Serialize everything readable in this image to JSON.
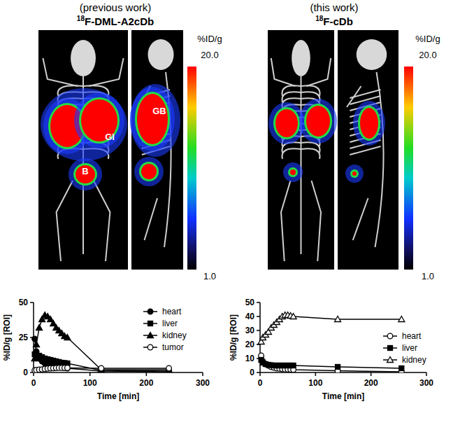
{
  "chart_data": [
    {
      "type": "line",
      "x_label": "Time [min]",
      "y_label": "%ID/g [ROI]",
      "x": [
        2,
        5,
        10,
        15,
        20,
        25,
        30,
        35,
        40,
        45,
        50,
        55,
        60,
        120,
        240
      ],
      "xlim": [
        0,
        300
      ],
      "xticks": [
        0,
        100,
        200,
        300
      ],
      "ylim": [
        0,
        50
      ],
      "yticks": [
        0,
        25,
        50
      ],
      "legend": "upper right",
      "series": [
        {
          "name": "heart",
          "color": "#000000",
          "marker": "circle",
          "values": [
            24,
            15,
            10,
            8,
            6.5,
            5.5,
            5,
            4.5,
            4,
            3.8,
            3.5,
            3.2,
            3,
            1,
            0.5
          ]
        },
        {
          "name": "liver",
          "color": "#000000",
          "marker": "square",
          "values": [
            13,
            13,
            12,
            11,
            10,
            9.5,
            9,
            8.5,
            8,
            7.5,
            7,
            6.8,
            6.5,
            1.5,
            1
          ]
        },
        {
          "name": "kidney",
          "color": "#000000",
          "marker": "triangle",
          "values": [
            10,
            20,
            32,
            38,
            41,
            40,
            38,
            35,
            32,
            30,
            28,
            26,
            25,
            2,
            2
          ]
        },
        {
          "name": "tumor",
          "color": "#000000",
          "marker": "circle-open",
          "values": [
            1.5,
            1.8,
            2,
            2.2,
            2.5,
            2.8,
            3,
            3.1,
            3.2,
            3.3,
            3.3,
            3.3,
            3.3,
            3,
            3
          ]
        }
      ]
    },
    {
      "type": "line",
      "x_label": "Time [min]",
      "y_label": "%ID/g [ROI]",
      "x": [
        2,
        5,
        10,
        15,
        20,
        25,
        30,
        35,
        40,
        45,
        50,
        55,
        60,
        140,
        255
      ],
      "xlim": [
        0,
        300
      ],
      "xticks": [
        0,
        100,
        200,
        300
      ],
      "ylim": [
        0,
        50
      ],
      "yticks": [
        0,
        10,
        20,
        30,
        40,
        50
      ],
      "legend": "center right",
      "series": [
        {
          "name": "heart",
          "color": "#000000",
          "marker": "circle-open",
          "values": [
            12,
            8,
            6,
            5,
            4,
            3.5,
            3,
            2.8,
            2.5,
            2.3,
            2.2,
            2.1,
            2,
            1.2,
            0.5
          ]
        },
        {
          "name": "liver",
          "color": "#000000",
          "marker": "square",
          "values": [
            9,
            7,
            6,
            5.5,
            5.2,
            5,
            5,
            5,
            5,
            5,
            5,
            5,
            5,
            4,
            3
          ]
        },
        {
          "name": "kidney",
          "color": "#000000",
          "marker": "triangle-open",
          "values": [
            22,
            25,
            27,
            29,
            32,
            34,
            36,
            38,
            40,
            41,
            41,
            40.5,
            40,
            38,
            38
          ]
        }
      ]
    }
  ],
  "images": [
    {
      "caption": "(previous work)",
      "isotope": "18",
      "tracer": "F-DML-A2cDb",
      "colorbar": {
        "title": "%ID/g",
        "range": [
          1,
          20
        ],
        "ticks": [
          {
            "value": 20,
            "label": "20.0"
          },
          {
            "value": 1,
            "label": "1.0"
          }
        ]
      },
      "labels": [
        "GB",
        "GI",
        "B"
      ]
    },
    {
      "caption": "(this work)",
      "isotope": "18",
      "tracer": "F-cDb",
      "colorbar": {
        "title": "%ID/g",
        "range": [
          1,
          20
        ],
        "ticks": [
          {
            "value": 20,
            "label": "20.0"
          },
          {
            "value": 1,
            "label": "1.0"
          }
        ]
      }
    }
  ]
}
